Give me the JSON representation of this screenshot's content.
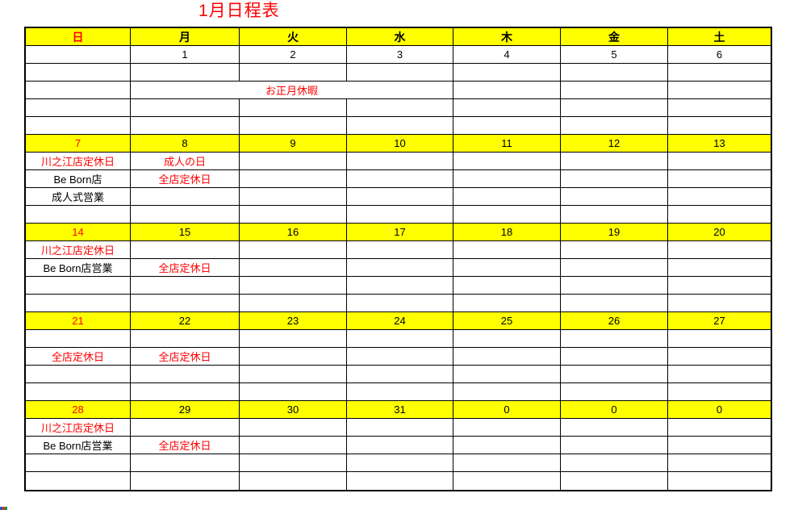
{
  "title": "1月日程表",
  "colors": {
    "highlight": "#ffff00",
    "accent_red": "#ff0000",
    "border": "#000000",
    "corner_artifact": [
      "#3350c0",
      "#d04020",
      "#209040"
    ]
  },
  "table": {
    "header": [
      {
        "t": "日",
        "c": "red"
      },
      {
        "t": "月"
      },
      {
        "t": "火"
      },
      {
        "t": "水"
      },
      {
        "t": "木"
      },
      {
        "t": "金"
      },
      {
        "t": "土"
      }
    ],
    "rows": [
      {
        "cells": [
          {
            "t": ""
          },
          {
            "t": "1"
          },
          {
            "t": "2"
          },
          {
            "t": "3"
          },
          {
            "t": "4"
          },
          {
            "t": "5"
          },
          {
            "t": "6"
          }
        ]
      },
      {
        "cells": [
          {
            "t": ""
          },
          {
            "t": ""
          },
          {
            "t": ""
          },
          {
            "t": ""
          },
          {
            "t": ""
          },
          {
            "t": ""
          },
          {
            "t": ""
          }
        ]
      },
      {
        "cells": [
          {
            "t": ""
          },
          {
            "t": "お正月休暇",
            "c": "red",
            "s": 3
          },
          {
            "t": ""
          },
          {
            "t": ""
          },
          {
            "t": ""
          }
        ]
      },
      {
        "cells": [
          {
            "t": ""
          },
          {
            "t": ""
          },
          {
            "t": ""
          },
          {
            "t": ""
          },
          {
            "t": ""
          },
          {
            "t": ""
          },
          {
            "t": ""
          }
        ]
      },
      {
        "cells": [
          {
            "t": ""
          },
          {
            "t": ""
          },
          {
            "t": ""
          },
          {
            "t": ""
          },
          {
            "t": ""
          },
          {
            "t": ""
          },
          {
            "t": ""
          }
        ]
      },
      {
        "week": true,
        "cells": [
          {
            "t": "7",
            "c": "red"
          },
          {
            "t": "8"
          },
          {
            "t": "9"
          },
          {
            "t": "10"
          },
          {
            "t": "11"
          },
          {
            "t": "12"
          },
          {
            "t": "13"
          }
        ]
      },
      {
        "cells": [
          {
            "t": "川之江店定休日",
            "c": "red"
          },
          {
            "t": "成人の日",
            "c": "red"
          },
          {
            "t": ""
          },
          {
            "t": ""
          },
          {
            "t": ""
          },
          {
            "t": ""
          },
          {
            "t": ""
          }
        ]
      },
      {
        "cells": [
          {
            "t": "Be Born店"
          },
          {
            "t": "全店定休日",
            "c": "red"
          },
          {
            "t": ""
          },
          {
            "t": ""
          },
          {
            "t": ""
          },
          {
            "t": ""
          },
          {
            "t": ""
          }
        ]
      },
      {
        "cells": [
          {
            "t": "成人式営業"
          },
          {
            "t": ""
          },
          {
            "t": ""
          },
          {
            "t": ""
          },
          {
            "t": ""
          },
          {
            "t": ""
          },
          {
            "t": ""
          }
        ]
      },
      {
        "cells": [
          {
            "t": ""
          },
          {
            "t": ""
          },
          {
            "t": ""
          },
          {
            "t": ""
          },
          {
            "t": ""
          },
          {
            "t": ""
          },
          {
            "t": ""
          }
        ]
      },
      {
        "week": true,
        "cells": [
          {
            "t": "14",
            "c": "red"
          },
          {
            "t": "15"
          },
          {
            "t": "16"
          },
          {
            "t": "17"
          },
          {
            "t": "18"
          },
          {
            "t": "19"
          },
          {
            "t": "20"
          }
        ]
      },
      {
        "cells": [
          {
            "t": "川之江店定休日",
            "c": "red"
          },
          {
            "t": ""
          },
          {
            "t": ""
          },
          {
            "t": ""
          },
          {
            "t": ""
          },
          {
            "t": ""
          },
          {
            "t": ""
          }
        ]
      },
      {
        "cells": [
          {
            "t": "Be Born店営業"
          },
          {
            "t": "全店定休日",
            "c": "red"
          },
          {
            "t": ""
          },
          {
            "t": ""
          },
          {
            "t": ""
          },
          {
            "t": ""
          },
          {
            "t": ""
          }
        ]
      },
      {
        "cells": [
          {
            "t": ""
          },
          {
            "t": ""
          },
          {
            "t": ""
          },
          {
            "t": ""
          },
          {
            "t": ""
          },
          {
            "t": ""
          },
          {
            "t": ""
          }
        ]
      },
      {
        "cells": [
          {
            "t": ""
          },
          {
            "t": ""
          },
          {
            "t": ""
          },
          {
            "t": ""
          },
          {
            "t": ""
          },
          {
            "t": ""
          },
          {
            "t": ""
          }
        ]
      },
      {
        "week": true,
        "cells": [
          {
            "t": "21",
            "c": "red"
          },
          {
            "t": "22"
          },
          {
            "t": "23"
          },
          {
            "t": "24"
          },
          {
            "t": "25"
          },
          {
            "t": "26"
          },
          {
            "t": "27"
          }
        ]
      },
      {
        "cells": [
          {
            "t": ""
          },
          {
            "t": ""
          },
          {
            "t": ""
          },
          {
            "t": ""
          },
          {
            "t": ""
          },
          {
            "t": ""
          },
          {
            "t": ""
          }
        ]
      },
      {
        "cells": [
          {
            "t": "全店定休日",
            "c": "red"
          },
          {
            "t": "全店定休日",
            "c": "red"
          },
          {
            "t": ""
          },
          {
            "t": ""
          },
          {
            "t": ""
          },
          {
            "t": ""
          },
          {
            "t": ""
          }
        ]
      },
      {
        "cells": [
          {
            "t": ""
          },
          {
            "t": ""
          },
          {
            "t": ""
          },
          {
            "t": ""
          },
          {
            "t": ""
          },
          {
            "t": ""
          },
          {
            "t": ""
          }
        ]
      },
      {
        "cells": [
          {
            "t": ""
          },
          {
            "t": ""
          },
          {
            "t": ""
          },
          {
            "t": ""
          },
          {
            "t": ""
          },
          {
            "t": ""
          },
          {
            "t": ""
          }
        ]
      },
      {
        "week": true,
        "cells": [
          {
            "t": "28",
            "c": "red"
          },
          {
            "t": "29"
          },
          {
            "t": "30"
          },
          {
            "t": "31"
          },
          {
            "t": "0"
          },
          {
            "t": "0"
          },
          {
            "t": "0"
          }
        ]
      },
      {
        "cells": [
          {
            "t": "川之江店定休日",
            "c": "red"
          },
          {
            "t": ""
          },
          {
            "t": ""
          },
          {
            "t": ""
          },
          {
            "t": ""
          },
          {
            "t": ""
          },
          {
            "t": ""
          }
        ]
      },
      {
        "cells": [
          {
            "t": "Be Born店営業"
          },
          {
            "t": "全店定休日",
            "c": "red"
          },
          {
            "t": ""
          },
          {
            "t": ""
          },
          {
            "t": ""
          },
          {
            "t": ""
          },
          {
            "t": ""
          }
        ]
      },
      {
        "cells": [
          {
            "t": ""
          },
          {
            "t": ""
          },
          {
            "t": ""
          },
          {
            "t": ""
          },
          {
            "t": ""
          },
          {
            "t": ""
          },
          {
            "t": ""
          }
        ]
      },
      {
        "cells": [
          {
            "t": ""
          },
          {
            "t": ""
          },
          {
            "t": ""
          },
          {
            "t": ""
          },
          {
            "t": ""
          },
          {
            "t": ""
          },
          {
            "t": ""
          }
        ]
      }
    ]
  }
}
